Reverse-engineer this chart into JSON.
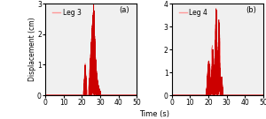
{
  "subplot_a": {
    "label": "Leg 3",
    "panel_label": "(a)",
    "ylim": [
      0,
      3
    ],
    "yticks": [
      0,
      1,
      2,
      3
    ],
    "xlim": [
      0,
      50
    ],
    "xticks": [
      0,
      10,
      20,
      30,
      40,
      50
    ]
  },
  "subplot_b": {
    "label": "Leg 4",
    "panel_label": "(b)",
    "ylim": [
      0,
      4
    ],
    "yticks": [
      0,
      1,
      2,
      3,
      4
    ],
    "xlim": [
      0,
      50
    ],
    "xticks": [
      0,
      10,
      20,
      30,
      40,
      50
    ]
  },
  "ylabel": "Displacement (cm)",
  "xlabel": "Time (s)",
  "line_color": "#cc0000",
  "line_color_light": "#ff9999",
  "bg_color": "#f0f0f0",
  "figsize": [
    3.0,
    1.35
  ],
  "dpi": 100
}
